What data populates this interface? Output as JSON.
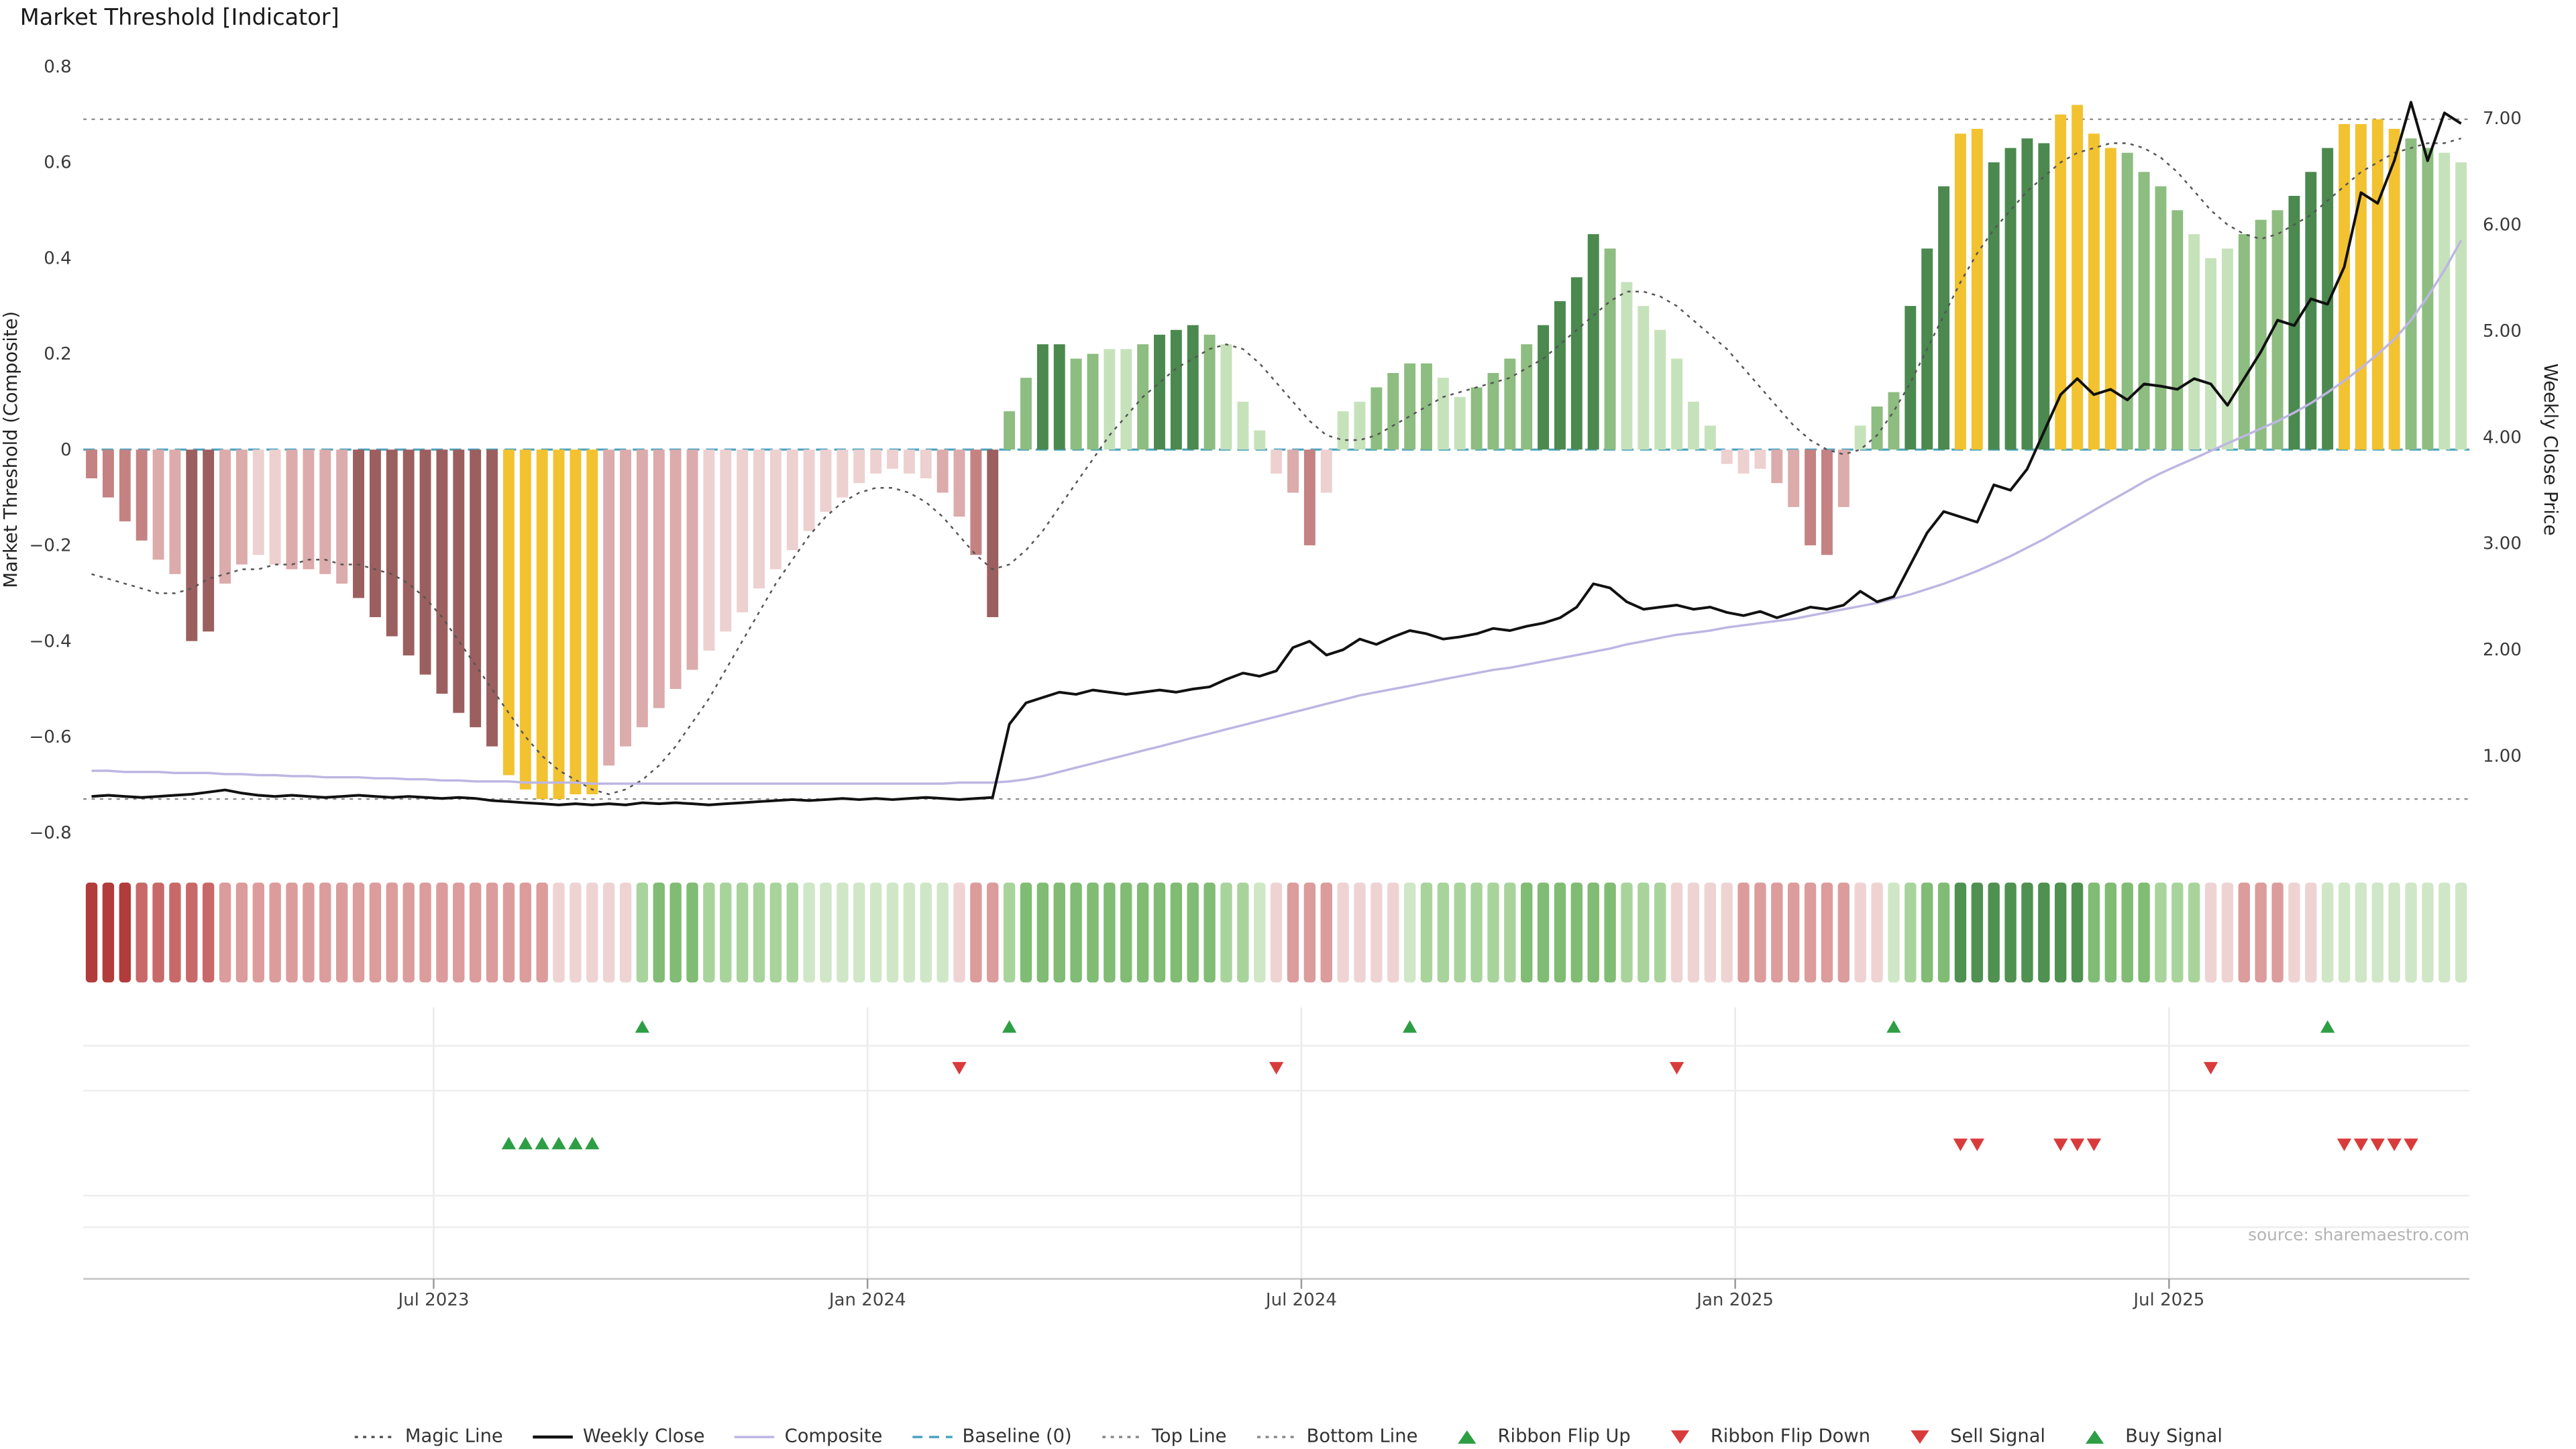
{
  "title": "Market Threshold [Indicator]",
  "source": "source: sharemaestro.com",
  "axes": {
    "left_label": "Market Threshold (Composite)",
    "right_label": "Weekly Close Price",
    "left_ticks": [
      "0.8",
      "0.6",
      "0.4",
      "0.2",
      "0",
      "−0.2",
      "−0.4",
      "−0.6",
      "−0.8"
    ],
    "left_tick_values": [
      0.8,
      0.6,
      0.4,
      0.2,
      0,
      -0.2,
      -0.4,
      -0.6,
      -0.8
    ],
    "right_ticks": [
      "7.00",
      "6.00",
      "5.00",
      "4.00",
      "3.00",
      "2.00",
      "1.00"
    ],
    "right_tick_values": [
      7,
      6,
      5,
      4,
      3,
      2,
      1
    ],
    "x_ticks": [
      {
        "label": "Jul 2023",
        "pos": 20.5
      },
      {
        "label": "Jan 2024",
        "pos": 46.5
      },
      {
        "label": "Jul 2024",
        "pos": 72.5
      },
      {
        "label": "Jan 2025",
        "pos": 98.5
      },
      {
        "label": "Jul 2025",
        "pos": 124.5
      }
    ]
  },
  "colors": {
    "bar": {
      "m": "#9c5f5f",
      "r": "#c58282",
      "p": "#dcabab",
      "lp": "#edd0d0",
      "y": "#f2c230",
      "lg": "#c6e2bb",
      "g": "#8dbd80",
      "dg": "#4b894f"
    },
    "ribbon": {
      "r3": "#b23b3b",
      "r2": "#c96868",
      "r1": "#dc9c9c",
      "r0": "#efd3d3",
      "g0": "#cfe7c6",
      "g1": "#a8d49c",
      "g2": "#80bc73",
      "g3": "#4f9150"
    },
    "signal_up": "#2e9e44",
    "signal_down": "#d93b3b",
    "magic_line": "#555555",
    "weekly_close": "#111111",
    "composite": "#bdb6e2",
    "baseline": "#4aa3c0",
    "top_bottom_line": "#8a8a8a",
    "gridline": "#eaeaea",
    "separator": "#ededed",
    "axis_line": "#cccccc",
    "tick_text": "#3a3a3a",
    "source_text": "#b3b3b3"
  },
  "chart_data": {
    "type": "bar",
    "title": "Market Threshold [Indicator]",
    "xlabel": "",
    "ylabel_left": "Market Threshold (Composite)",
    "ylabel_right": "Weekly Close Price",
    "left_ylim": [
      -0.8,
      0.8
    ],
    "right_ylim": [
      0.28,
      7.49
    ],
    "grid": false,
    "legend_position": "bottom-center",
    "top_line_value": 0.69,
    "bottom_line_value": -0.73,
    "baseline_value": 0,
    "n_weeks": 143,
    "bars": {
      "name": "Market Threshold histogram",
      "values": [
        -0.06,
        -0.1,
        -0.15,
        -0.19,
        -0.23,
        -0.26,
        -0.4,
        -0.38,
        -0.28,
        -0.24,
        -0.22,
        -0.24,
        -0.25,
        -0.25,
        -0.26,
        -0.28,
        -0.31,
        -0.35,
        -0.39,
        -0.43,
        -0.47,
        -0.51,
        -0.55,
        -0.58,
        -0.62,
        -0.68,
        -0.71,
        -0.73,
        -0.73,
        -0.72,
        -0.72,
        -0.66,
        -0.62,
        -0.58,
        -0.54,
        -0.5,
        -0.46,
        -0.42,
        -0.38,
        -0.34,
        -0.29,
        -0.25,
        -0.21,
        -0.17,
        -0.13,
        -0.1,
        -0.07,
        -0.05,
        -0.04,
        -0.05,
        -0.06,
        -0.09,
        -0.14,
        -0.22,
        -0.35,
        0.08,
        0.15,
        0.22,
        0.22,
        0.19,
        0.2,
        0.21,
        0.21,
        0.22,
        0.24,
        0.25,
        0.26,
        0.24,
        0.22,
        0.1,
        0.04,
        -0.05,
        -0.09,
        -0.2,
        -0.09,
        0.08,
        0.1,
        0.13,
        0.16,
        0.18,
        0.18,
        0.15,
        0.11,
        0.13,
        0.16,
        0.19,
        0.22,
        0.26,
        0.31,
        0.36,
        0.45,
        0.42,
        0.35,
        0.3,
        0.25,
        0.19,
        0.1,
        0.05,
        -0.03,
        -0.05,
        -0.04,
        -0.07,
        -0.12,
        -0.2,
        -0.22,
        -0.12,
        0.05,
        0.09,
        0.12,
        0.3,
        0.42,
        0.55,
        0.66,
        0.67,
        0.6,
        0.63,
        0.65,
        0.64,
        0.7,
        0.72,
        0.66,
        0.63,
        0.62,
        0.58,
        0.55,
        0.5,
        0.45,
        0.4,
        0.42,
        0.45,
        0.48,
        0.5,
        0.53,
        0.58,
        0.63,
        0.68,
        0.68,
        0.69,
        0.67,
        0.65,
        0.63,
        0.62,
        0.6
      ],
      "colors": [
        "r",
        "r",
        "r",
        "r",
        "p",
        "p",
        "m",
        "m",
        "p",
        "p",
        "lp",
        "lp",
        "p",
        "p",
        "p",
        "p",
        "m",
        "m",
        "m",
        "m",
        "m",
        "m",
        "m",
        "m",
        "m",
        "y",
        "y",
        "y",
        "y",
        "y",
        "y",
        "p",
        "p",
        "p",
        "p",
        "p",
        "p",
        "lp",
        "lp",
        "lp",
        "lp",
        "lp",
        "lp",
        "lp",
        "lp",
        "lp",
        "lp",
        "lp",
        "lp",
        "lp",
        "lp",
        "p",
        "p",
        "r",
        "m",
        "g",
        "g",
        "dg",
        "dg",
        "g",
        "g",
        "lg",
        "lg",
        "g",
        "dg",
        "dg",
        "dg",
        "g",
        "lg",
        "lg",
        "lg",
        "lp",
        "p",
        "r",
        "lp",
        "lg",
        "lg",
        "g",
        "g",
        "g",
        "g",
        "lg",
        "lg",
        "g",
        "g",
        "g",
        "g",
        "dg",
        "dg",
        "dg",
        "dg",
        "g",
        "lg",
        "lg",
        "lg",
        "lg",
        "lg",
        "lg",
        "lp",
        "lp",
        "lp",
        "p",
        "p",
        "r",
        "r",
        "p",
        "lg",
        "g",
        "g",
        "dg",
        "dg",
        "dg",
        "y",
        "y",
        "dg",
        "dg",
        "dg",
        "dg",
        "y",
        "y",
        "y",
        "y",
        "g",
        "g",
        "g",
        "g",
        "lg",
        "lg",
        "lg",
        "g",
        "g",
        "g",
        "dg",
        "dg",
        "dg",
        "y",
        "y",
        "y",
        "y",
        "g",
        "g",
        "lg",
        "lg"
      ]
    },
    "series": [
      {
        "name": "Magic Line",
        "axis": "left",
        "style": "dotted",
        "values": [
          -0.26,
          -0.27,
          -0.28,
          -0.29,
          -0.3,
          -0.3,
          -0.29,
          -0.27,
          -0.26,
          -0.25,
          -0.25,
          -0.24,
          -0.24,
          -0.23,
          -0.23,
          -0.24,
          -0.24,
          -0.25,
          -0.26,
          -0.28,
          -0.31,
          -0.35,
          -0.4,
          -0.45,
          -0.5,
          -0.55,
          -0.6,
          -0.64,
          -0.67,
          -0.69,
          -0.71,
          -0.72,
          -0.71,
          -0.69,
          -0.66,
          -0.62,
          -0.57,
          -0.52,
          -0.46,
          -0.4,
          -0.34,
          -0.28,
          -0.23,
          -0.18,
          -0.14,
          -0.11,
          -0.09,
          -0.08,
          -0.08,
          -0.09,
          -0.11,
          -0.14,
          -0.18,
          -0.22,
          -0.25,
          -0.24,
          -0.21,
          -0.17,
          -0.12,
          -0.07,
          -0.02,
          0.03,
          0.07,
          0.11,
          0.14,
          0.17,
          0.19,
          0.21,
          0.22,
          0.21,
          0.18,
          0.14,
          0.1,
          0.06,
          0.03,
          0.02,
          0.02,
          0.03,
          0.05,
          0.07,
          0.09,
          0.11,
          0.12,
          0.13,
          0.14,
          0.15,
          0.17,
          0.19,
          0.22,
          0.25,
          0.28,
          0.31,
          0.33,
          0.33,
          0.32,
          0.3,
          0.27,
          0.24,
          0.21,
          0.17,
          0.13,
          0.09,
          0.05,
          0.02,
          0.0,
          -0.01,
          0.0,
          0.03,
          0.08,
          0.14,
          0.21,
          0.28,
          0.35,
          0.41,
          0.46,
          0.5,
          0.54,
          0.57,
          0.6,
          0.62,
          0.63,
          0.64,
          0.64,
          0.63,
          0.61,
          0.58,
          0.54,
          0.5,
          0.47,
          0.45,
          0.44,
          0.45,
          0.47,
          0.49,
          0.52,
          0.55,
          0.58,
          0.6,
          0.62,
          0.63,
          0.64,
          0.64,
          0.65
        ]
      },
      {
        "name": "Weekly Close",
        "axis": "right",
        "style": "solid",
        "values": [
          0.62,
          0.63,
          0.62,
          0.61,
          0.62,
          0.63,
          0.64,
          0.66,
          0.68,
          0.65,
          0.63,
          0.62,
          0.63,
          0.62,
          0.61,
          0.62,
          0.63,
          0.62,
          0.61,
          0.62,
          0.61,
          0.6,
          0.61,
          0.6,
          0.58,
          0.57,
          0.56,
          0.55,
          0.54,
          0.55,
          0.54,
          0.55,
          0.54,
          0.56,
          0.55,
          0.56,
          0.55,
          0.54,
          0.55,
          0.56,
          0.57,
          0.58,
          0.59,
          0.58,
          0.59,
          0.6,
          0.59,
          0.6,
          0.59,
          0.6,
          0.61,
          0.6,
          0.59,
          0.6,
          0.61,
          1.3,
          1.5,
          1.55,
          1.6,
          1.58,
          1.62,
          1.6,
          1.58,
          1.6,
          1.62,
          1.6,
          1.63,
          1.65,
          1.72,
          1.78,
          1.75,
          1.8,
          2.02,
          2.08,
          1.95,
          2.0,
          2.1,
          2.05,
          2.12,
          2.18,
          2.15,
          2.1,
          2.12,
          2.15,
          2.2,
          2.18,
          2.22,
          2.25,
          2.3,
          2.4,
          2.62,
          2.58,
          2.45,
          2.38,
          2.4,
          2.42,
          2.38,
          2.4,
          2.35,
          2.32,
          2.36,
          2.3,
          2.35,
          2.4,
          2.38,
          2.42,
          2.55,
          2.45,
          2.5,
          2.8,
          3.1,
          3.3,
          3.25,
          3.2,
          3.55,
          3.5,
          3.7,
          4.05,
          4.4,
          4.55,
          4.4,
          4.45,
          4.35,
          4.5,
          4.48,
          4.45,
          4.55,
          4.5,
          4.3,
          4.55,
          4.8,
          5.1,
          5.05,
          5.3,
          5.25,
          5.6,
          6.3,
          6.2,
          6.6,
          7.15,
          6.6,
          7.05,
          6.95
        ]
      },
      {
        "name": "Composite",
        "axis": "right",
        "style": "solid",
        "values": [
          0.86,
          0.86,
          0.85,
          0.85,
          0.85,
          0.84,
          0.84,
          0.84,
          0.83,
          0.83,
          0.82,
          0.82,
          0.81,
          0.81,
          0.8,
          0.8,
          0.8,
          0.79,
          0.79,
          0.78,
          0.78,
          0.77,
          0.77,
          0.76,
          0.76,
          0.76,
          0.75,
          0.75,
          0.75,
          0.75,
          0.74,
          0.74,
          0.74,
          0.74,
          0.74,
          0.74,
          0.74,
          0.74,
          0.74,
          0.74,
          0.74,
          0.74,
          0.74,
          0.74,
          0.74,
          0.74,
          0.74,
          0.74,
          0.74,
          0.74,
          0.74,
          0.74,
          0.75,
          0.75,
          0.75,
          0.76,
          0.78,
          0.81,
          0.85,
          0.89,
          0.93,
          0.97,
          1.01,
          1.05,
          1.09,
          1.13,
          1.17,
          1.21,
          1.25,
          1.29,
          1.33,
          1.37,
          1.41,
          1.45,
          1.49,
          1.53,
          1.57,
          1.6,
          1.63,
          1.66,
          1.69,
          1.72,
          1.75,
          1.78,
          1.81,
          1.83,
          1.86,
          1.89,
          1.92,
          1.95,
          1.98,
          2.01,
          2.05,
          2.08,
          2.11,
          2.14,
          2.16,
          2.18,
          2.21,
          2.23,
          2.25,
          2.27,
          2.29,
          2.32,
          2.35,
          2.38,
          2.41,
          2.44,
          2.48,
          2.52,
          2.57,
          2.62,
          2.68,
          2.74,
          2.81,
          2.88,
          2.96,
          3.04,
          3.13,
          3.22,
          3.31,
          3.4,
          3.49,
          3.58,
          3.66,
          3.73,
          3.8,
          3.87,
          3.94,
          4.01,
          4.08,
          4.15,
          4.23,
          4.32,
          4.42,
          4.53,
          4.65,
          4.78,
          4.92,
          5.1,
          5.32,
          5.57,
          5.85
        ]
      }
    ],
    "ribbon": {
      "colors": [
        "r3",
        "r3",
        "r3",
        "r2",
        "r2",
        "r2",
        "r2",
        "r2",
        "r1",
        "r1",
        "r1",
        "r1",
        "r1",
        "r1",
        "r1",
        "r1",
        "r1",
        "r1",
        "r1",
        "r1",
        "r1",
        "r1",
        "r1",
        "r1",
        "r1",
        "r1",
        "r1",
        "r1",
        "r0",
        "r0",
        "r0",
        "r0",
        "r0",
        "g1",
        "g2",
        "g2",
        "g2",
        "g1",
        "g1",
        "g1",
        "g1",
        "g1",
        "g1",
        "g0",
        "g0",
        "g0",
        "g0",
        "g0",
        "g0",
        "g0",
        "g0",
        "g0",
        "r0",
        "r1",
        "r1",
        "g1",
        "g2",
        "g2",
        "g2",
        "g2",
        "g2",
        "g2",
        "g2",
        "g2",
        "g2",
        "g2",
        "g2",
        "g2",
        "g1",
        "g1",
        "g0",
        "r0",
        "r1",
        "r1",
        "r1",
        "r0",
        "r0",
        "r0",
        "r0",
        "g0",
        "g1",
        "g1",
        "g1",
        "g1",
        "g1",
        "g1",
        "g2",
        "g2",
        "g2",
        "g2",
        "g2",
        "g2",
        "g1",
        "g1",
        "g1",
        "r0",
        "r0",
        "r0",
        "r0",
        "r1",
        "r1",
        "r1",
        "r1",
        "r1",
        "r1",
        "r1",
        "r0",
        "r0",
        "g0",
        "g1",
        "g2",
        "g2",
        "g3",
        "g3",
        "g3",
        "g3",
        "g3",
        "g3",
        "g3",
        "g3",
        "g2",
        "g2",
        "g2",
        "g2",
        "g1",
        "g1",
        "g1",
        "r0",
        "r0",
        "r1",
        "r1",
        "r1",
        "r0",
        "r0",
        "g0",
        "g0",
        "g0",
        "g0",
        "g0",
        "g0",
        "g0",
        "g0",
        "g0"
      ]
    },
    "signals": {
      "ribbon_flip_up": [
        33,
        55,
        79,
        108,
        134
      ],
      "ribbon_flip_down": [
        52,
        71,
        95,
        127
      ],
      "buy": [
        25,
        26,
        27,
        28,
        29,
        30
      ],
      "sell": [
        112,
        113,
        118,
        119,
        120,
        135,
        136,
        137,
        138,
        139
      ]
    }
  },
  "legend": {
    "items": [
      {
        "label": "Magic Line",
        "marker": "dotted-line",
        "color": "#555555"
      },
      {
        "label": "Weekly Close",
        "marker": "solid-line",
        "color": "#111111"
      },
      {
        "label": "Composite",
        "marker": "solid-line",
        "color": "#bdb6e2"
      },
      {
        "label": "Baseline (0)",
        "marker": "dashed-line",
        "color": "#4aa3c0"
      },
      {
        "label": "Top Line",
        "marker": "dotted-line",
        "color": "#8a8a8a"
      },
      {
        "label": "Bottom Line",
        "marker": "dotted-line",
        "color": "#8a8a8a"
      },
      {
        "label": "Ribbon Flip Up",
        "marker": "triangle-up",
        "color": "#2e9e44"
      },
      {
        "label": "Ribbon Flip Down",
        "marker": "triangle-down",
        "color": "#d93b3b"
      },
      {
        "label": "Sell Signal",
        "marker": "triangle-down",
        "color": "#d93b3b"
      },
      {
        "label": "Buy Signal",
        "marker": "triangle-up",
        "color": "#2e9e44"
      }
    ]
  }
}
